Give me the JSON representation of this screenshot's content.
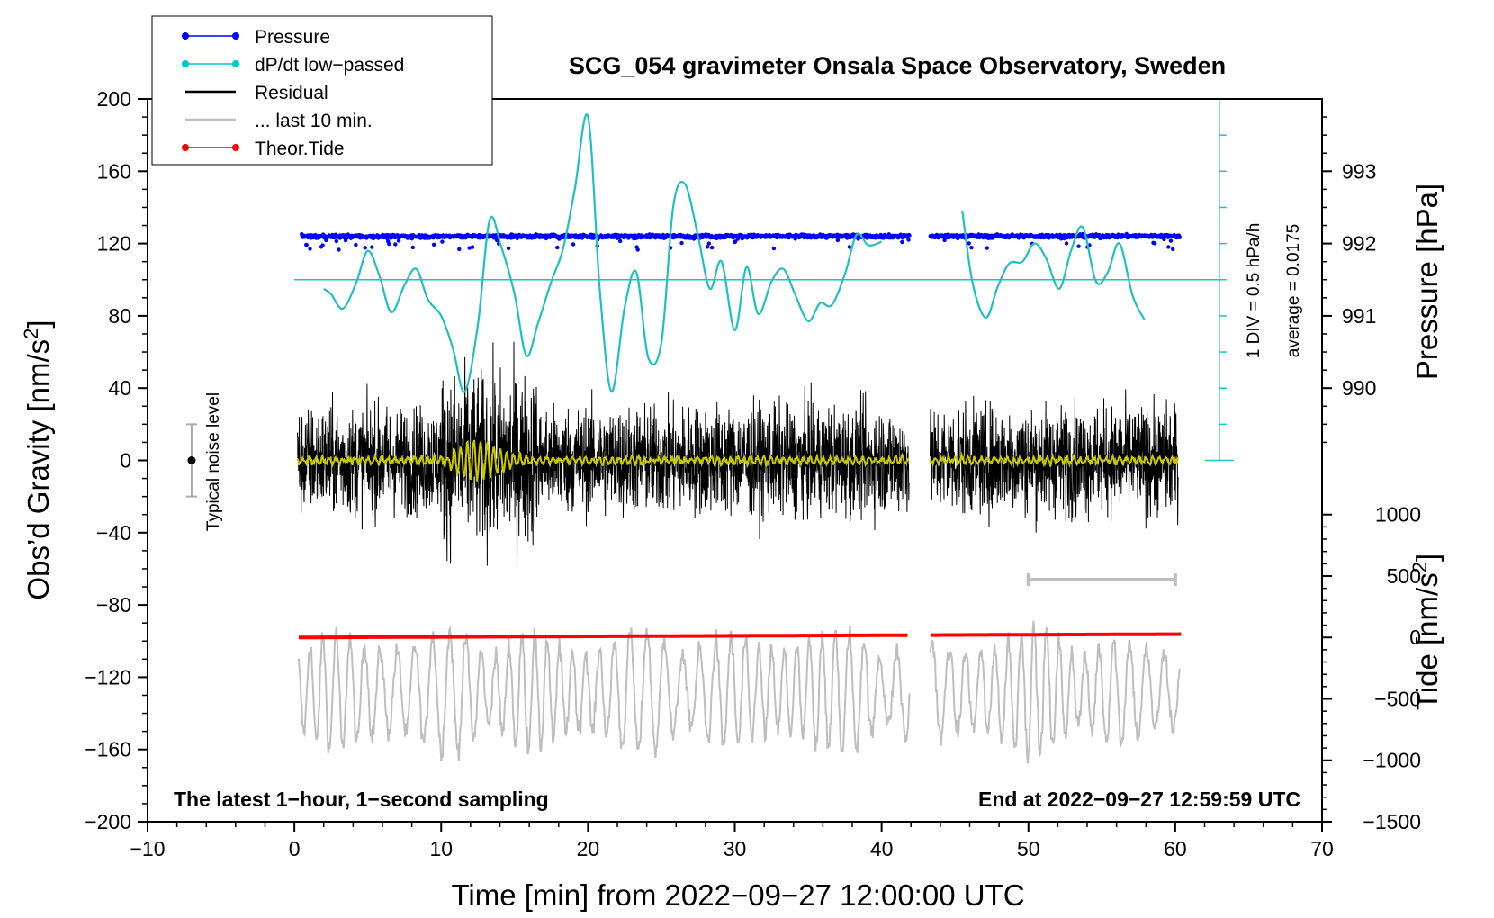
{
  "chart_data": {
    "type": "line",
    "title": "SCG_054 gravimeter Onsala Space Observatory, Sweden",
    "xlabel": "Time [min] from 2022−09−27 12:00:00 UTC",
    "ylabel_left": "Obs’d Gravity [nm/s",
    "ylabel_left_sup": "2",
    "ylabel_left_tail": "]",
    "ylabel_right_pressure": "Pressure [hPa]",
    "ylabel_right_tide": "Tide [nm/s",
    "ylabel_right_tide_sup": "2",
    "ylabel_right_tide_tail": "]",
    "xlim": [
      -10,
      70
    ],
    "ylim": [
      -200,
      200
    ],
    "x_ticks": [
      "−10",
      "0",
      "10",
      "20",
      "30",
      "40",
      "50",
      "60",
      "70"
    ],
    "x_tick_values": [
      -10,
      0,
      10,
      20,
      30,
      40,
      50,
      60,
      70
    ],
    "y_ticks": [
      "200",
      "160",
      "120",
      "80",
      "40",
      "0",
      "−40",
      "−80",
      "−120",
      "−160",
      "−200"
    ],
    "y_tick_values": [
      200,
      160,
      120,
      80,
      40,
      0,
      -40,
      -80,
      -120,
      -160,
      -200
    ],
    "pressure_ticks": [
      "993",
      "992",
      "991",
      "990"
    ],
    "pressure_tick_values": [
      993,
      992,
      991,
      990
    ],
    "pressure_axis_map": {
      "hpa_at_120": 992,
      "nms2_per_hpa": 40
    },
    "tide_ticks": [
      "1000",
      "500",
      "0",
      "−500",
      "−1000",
      "−1500"
    ],
    "tide_tick_values": [
      1000,
      500,
      0,
      -500,
      -1000,
      -1500
    ],
    "tide_axis_map": {
      "tide_at_minus200": -1500,
      "tide_at_minus30": 1000
    },
    "footer_left": "The latest 1−hour, 1−second sampling",
    "footer_right": "End at 2022−09−27 12:59:59 UTC",
    "noise_label": "Typical noise level",
    "noise_range": [
      -20,
      20
    ],
    "noise_x": -7,
    "dpdt_scale_label": "1 DIV = 0.5 hPa/h",
    "dpdt_average_label": "average = 0.0175",
    "dpdt_baseline": 100,
    "dpdt_scale_x": 63,
    "last10_bar": [
      50,
      60
    ],
    "last10_bar_y": -66,
    "gap": [
      41.9,
      43.3
    ],
    "legend": [
      {
        "label": "Pressure",
        "color": "#0000ff",
        "marker": true
      },
      {
        "label": "dP/dt low−passed",
        "color": "#00c8c8",
        "marker": true
      },
      {
        "label": "Residual",
        "color": "#000000",
        "marker": false
      },
      {
        "label": "... last 10 min.",
        "color": "#bebebe",
        "marker": false
      },
      {
        "label": "Theor.Tide",
        "color": "#ff0000",
        "marker": true
      }
    ],
    "colors": {
      "pressure": "#0000ff",
      "dpdt": "#20c0c0",
      "residual": "#000000",
      "residual_smooth": "#c8c800",
      "last10": "#bebebe",
      "tide": "#ff0000"
    },
    "series": [
      {
        "name": "Pressure",
        "unit": "hPa",
        "mean": 992.1,
        "x": [
          0.5,
          41.9,
          43.3,
          60.3
        ]
      },
      {
        "name": "dP/dt low−passed",
        "unit": "nm/s2 plot units",
        "x": [
          2.0,
          2.5,
          3.3,
          4.2,
          5.0,
          5.8,
          6.6,
          7.5,
          8.3,
          9.1,
          10.0,
          10.8,
          11.6,
          12.5,
          13.3,
          14.1,
          15.0,
          15.8,
          16.6,
          17.5,
          18.3,
          19.1,
          20.0,
          20.8,
          21.6,
          22.5,
          23.3,
          24.1,
          25.0,
          25.8,
          26.6,
          27.5,
          28.3,
          29.1,
          30.0,
          30.8,
          31.6,
          32.5,
          33.3,
          34.1,
          35.0,
          35.8,
          36.6,
          37.5,
          38.3,
          39.1,
          40.0,
          45.5,
          46.2,
          47.1,
          47.9,
          48.7,
          49.6,
          50.4,
          51.2,
          52.1,
          52.9,
          53.7,
          54.6,
          55.4,
          56.2,
          57.1,
          57.9
        ],
        "y": [
          95,
          92,
          84,
          98,
          116,
          102,
          82,
          97,
          106,
          89,
          80,
          62,
          38,
          75,
          133,
          118,
          92,
          58,
          76,
          99,
          117,
          150,
          190,
          95,
          38,
          85,
          104,
          57,
          65,
          140,
          153,
          124,
          95,
          110,
          72,
          107,
          81,
          99,
          106,
          92,
          77,
          87,
          86,
          103,
          125,
          119,
          121,
          138,
          98,
          79,
          96,
          109,
          110,
          120,
          112,
          95,
          116,
          129,
          99,
          104,
          120,
          91,
          78
        ]
      },
      {
        "name": "Residual",
        "unit": "nm/s2",
        "envelope": 35,
        "x": [
          0.2,
          41.9,
          43.2,
          60.2
        ]
      },
      {
        "name": "... last 10 min.",
        "unit": "nm/s2 plot units",
        "center": -128,
        "envelope": 30
      },
      {
        "name": "Theor.Tide",
        "unit": "nm/s2",
        "x": [
          0.3,
          60.4
        ],
        "y": [
          0,
          27
        ]
      }
    ]
  }
}
